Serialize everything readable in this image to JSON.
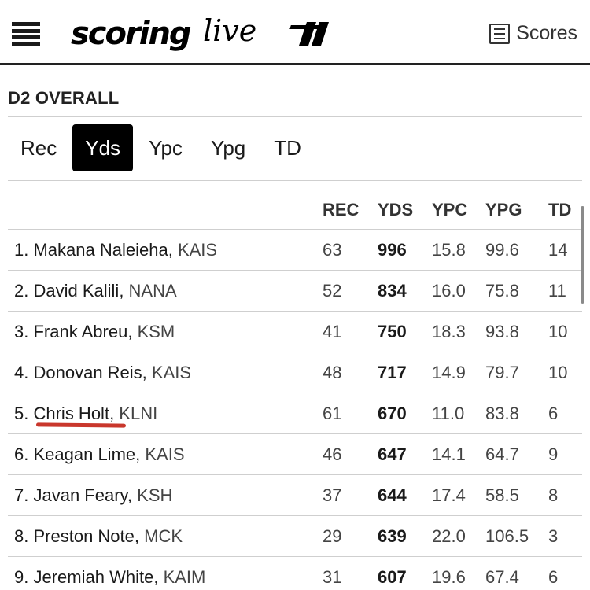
{
  "header": {
    "logo_text": "scoringlive",
    "scores_label": "Scores",
    "menu_icon": "hamburger-icon",
    "scores_icon": "list-icon"
  },
  "section": {
    "title": "D2 OVERALL"
  },
  "tabs": [
    {
      "label": "Rec",
      "active": false
    },
    {
      "label": "Yds",
      "active": true
    },
    {
      "label": "Ypc",
      "active": false
    },
    {
      "label": "Ypg",
      "active": false
    },
    {
      "label": "TD",
      "active": false
    }
  ],
  "table": {
    "columns": [
      "REC",
      "YDS",
      "YPC",
      "YPG",
      "TD"
    ],
    "rows": [
      {
        "rank": "1.",
        "name": "Makana Naleieha",
        "team": "KAIS",
        "rec": "63",
        "yds": "996",
        "ypc": "15.8",
        "ypg": "99.6",
        "td": "14"
      },
      {
        "rank": "2.",
        "name": "David Kalili",
        "team": "NANA",
        "rec": "52",
        "yds": "834",
        "ypc": "16.0",
        "ypg": "75.8",
        "td": "11"
      },
      {
        "rank": "3.",
        "name": "Frank Abreu",
        "team": "KSM",
        "rec": "41",
        "yds": "750",
        "ypc": "18.3",
        "ypg": "93.8",
        "td": "10"
      },
      {
        "rank": "4.",
        "name": "Donovan Reis",
        "team": "KAIS",
        "rec": "48",
        "yds": "717",
        "ypc": "14.9",
        "ypg": "79.7",
        "td": "10"
      },
      {
        "rank": "5.",
        "name": "Chris Holt",
        "team": "KLNI",
        "rec": "61",
        "yds": "670",
        "ypc": "11.0",
        "ypg": "83.8",
        "td": "6"
      },
      {
        "rank": "6.",
        "name": "Keagan Lime",
        "team": "KAIS",
        "rec": "46",
        "yds": "647",
        "ypc": "14.1",
        "ypg": "64.7",
        "td": "9"
      },
      {
        "rank": "7.",
        "name": "Javan Feary",
        "team": "KSH",
        "rec": "37",
        "yds": "644",
        "ypc": "17.4",
        "ypg": "58.5",
        "td": "8"
      },
      {
        "rank": "8.",
        "name": "Preston Note",
        "team": "MCK",
        "rec": "29",
        "yds": "639",
        "ypc": "22.0",
        "ypg": "106.5",
        "td": "3"
      },
      {
        "rank": "9.",
        "name": "Jeremiah White",
        "team": "KAIM",
        "rec": "31",
        "yds": "607",
        "ypc": "19.6",
        "ypg": "67.4",
        "td": "6"
      }
    ]
  },
  "colors": {
    "accent_underline": "#c9372c",
    "active_tab_bg": "#000000",
    "text": "#1a1a1a"
  }
}
